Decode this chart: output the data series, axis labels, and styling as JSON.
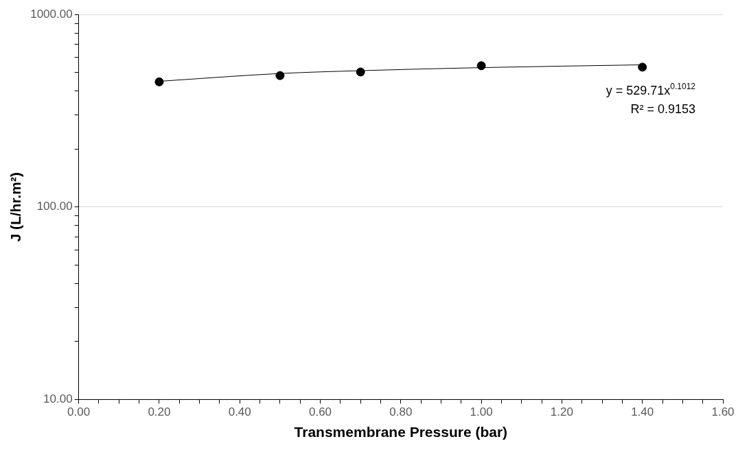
{
  "chart_data": {
    "type": "scatter",
    "xlabel": "Transmembrane Pressure (bar)",
    "ylabel": "J (L/hr.m²)",
    "log": "y",
    "grid": "y",
    "marker": "circle",
    "legend": false,
    "xlim": [
      0,
      1.6
    ],
    "xticks": [
      {
        "value": 0,
        "label": "0.00"
      },
      {
        "value": 0.05,
        "label": null
      },
      {
        "value": 0.1,
        "label": null
      },
      {
        "value": 0.15,
        "label": null
      },
      {
        "value": 0.2,
        "label": "0.20"
      },
      {
        "value": 0.25,
        "label": null
      },
      {
        "value": 0.3,
        "label": null
      },
      {
        "value": 0.35,
        "label": null
      },
      {
        "value": 0.4,
        "label": "0.40"
      },
      {
        "value": 0.45,
        "label": null
      },
      {
        "value": 0.5,
        "label": null
      },
      {
        "value": 0.55,
        "label": null
      },
      {
        "value": 0.6,
        "label": "0.60"
      },
      {
        "value": 0.65,
        "label": null
      },
      {
        "value": 0.7,
        "label": null
      },
      {
        "value": 0.75,
        "label": null
      },
      {
        "value": 0.8,
        "label": "0.80"
      },
      {
        "value": 0.85,
        "label": null
      },
      {
        "value": 0.9,
        "label": null
      },
      {
        "value": 0.95,
        "label": null
      },
      {
        "value": 1.0,
        "label": "1.00"
      },
      {
        "value": 1.05,
        "label": null
      },
      {
        "value": 1.1,
        "label": null
      },
      {
        "value": 1.15,
        "label": null
      },
      {
        "value": 1.2,
        "label": "1.20"
      },
      {
        "value": 1.25,
        "label": null
      },
      {
        "value": 1.3,
        "label": null
      },
      {
        "value": 1.35,
        "label": null
      },
      {
        "value": 1.4,
        "label": "1.40"
      },
      {
        "value": 1.45,
        "label": null
      },
      {
        "value": 1.5,
        "label": null
      },
      {
        "value": 1.55,
        "label": null
      },
      {
        "value": 1.6,
        "label": "1.60"
      }
    ],
    "ylim": [
      10,
      1000
    ],
    "yticks": [
      {
        "value": 10,
        "label": "10.00"
      },
      {
        "value": 20,
        "label": null
      },
      {
        "value": 30,
        "label": null
      },
      {
        "value": 40,
        "label": null
      },
      {
        "value": 50,
        "label": null
      },
      {
        "value": 60,
        "label": null
      },
      {
        "value": 70,
        "label": null
      },
      {
        "value": 80,
        "label": null
      },
      {
        "value": 90,
        "label": null
      },
      {
        "value": 100,
        "label": "100.00"
      },
      {
        "value": 200,
        "label": null
      },
      {
        "value": 300,
        "label": null
      },
      {
        "value": 400,
        "label": null
      },
      {
        "value": 500,
        "label": null
      },
      {
        "value": 600,
        "label": null
      },
      {
        "value": 700,
        "label": null
      },
      {
        "value": 800,
        "label": null
      },
      {
        "value": 900,
        "label": null
      },
      {
        "value": 1000,
        "label": "1000.00"
      }
    ],
    "series": [
      {
        "color": "#000000",
        "x": [
          0.2,
          0.5,
          0.7,
          1.0,
          1.4
        ],
        "values": [
          447,
          482,
          503,
          542,
          533
        ]
      },
      {
        "type": "line",
        "color": "#000000",
        "marker": "none",
        "x": [
          0.2,
          0.5,
          0.7,
          1.0,
          1.4
        ],
        "values": [
          450,
          494,
          511,
          530,
          548
        ]
      }
    ],
    "annotations": [
      "y = 529.71x$^{0.1012}$",
      "R² = 0.9153"
    ]
  }
}
